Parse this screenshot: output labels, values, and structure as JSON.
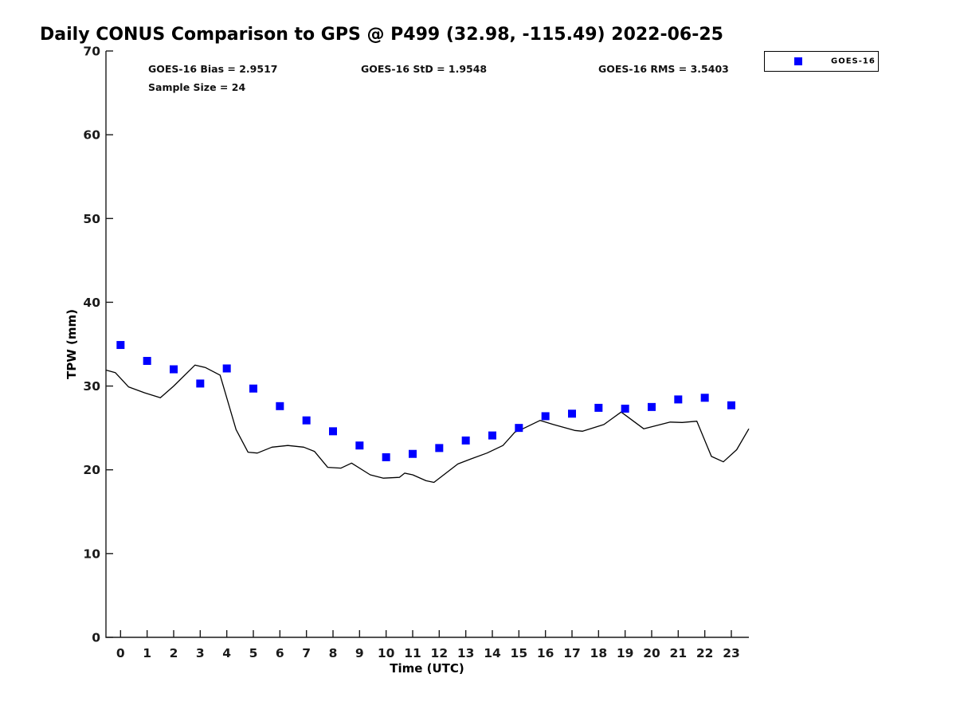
{
  "chart_data": {
    "type": "line",
    "title": "Daily CONUS Comparison to GPS @ P499 (32.98, -115.49) 2022-06-25",
    "xlabel": "Time (UTC)",
    "ylabel": "TPW (mm)",
    "xlim": [
      -0.55,
      23.66
    ],
    "ylim": [
      0,
      70
    ],
    "xticks": [
      0,
      1,
      2,
      3,
      4,
      5,
      6,
      7,
      8,
      9,
      10,
      11,
      12,
      13,
      14,
      15,
      16,
      17,
      18,
      19,
      20,
      21,
      22,
      23
    ],
    "yticks": [
      0,
      10,
      20,
      30,
      40,
      50,
      60,
      70
    ],
    "grid": false,
    "legend": {
      "position": "top-right",
      "entries": [
        "GOES-16"
      ]
    },
    "stats": {
      "bias_label": "GOES-16 Bias = 2.9517",
      "std_label": "GOES-16 StD = 1.9548",
      "rms_label": "GOES-16 RMS = 3.5403",
      "sample_label": "Sample Size = 24",
      "bias": 2.9517,
      "std": 1.9548,
      "rms": 3.5403,
      "sample_size": 24
    },
    "series": [
      {
        "name": "GOES-16",
        "type": "scatter",
        "marker": "square",
        "color": "#0000ff",
        "x": [
          0,
          1,
          2,
          3,
          4,
          5,
          6,
          7,
          8,
          9,
          10,
          11,
          12,
          13,
          14,
          15,
          16,
          17,
          18,
          19,
          20,
          21,
          22,
          23
        ],
        "y": [
          34.9,
          33.0,
          32.0,
          30.3,
          32.1,
          29.7,
          27.6,
          25.9,
          24.6,
          22.9,
          21.5,
          21.9,
          22.6,
          23.5,
          24.1,
          25.0,
          26.4,
          26.7,
          27.4,
          27.3,
          27.5,
          28.4,
          28.6,
          27.7
        ]
      },
      {
        "name": "GPS",
        "type": "line",
        "color": "#000000",
        "points": [
          [
            -0.54,
            31.9
          ],
          [
            -0.2,
            31.6
          ],
          [
            0.3,
            29.9
          ],
          [
            0.9,
            29.2
          ],
          [
            1.5,
            28.6
          ],
          [
            2.0,
            30.0
          ],
          [
            2.8,
            32.5
          ],
          [
            3.2,
            32.2
          ],
          [
            3.75,
            31.3
          ],
          [
            4.35,
            24.8
          ],
          [
            4.8,
            22.1
          ],
          [
            5.15,
            22.0
          ],
          [
            5.7,
            22.7
          ],
          [
            6.3,
            22.9
          ],
          [
            6.9,
            22.7
          ],
          [
            7.3,
            22.2
          ],
          [
            7.8,
            20.3
          ],
          [
            8.3,
            20.2
          ],
          [
            8.7,
            20.8
          ],
          [
            9.4,
            19.4
          ],
          [
            9.9,
            19.0
          ],
          [
            10.5,
            19.1
          ],
          [
            10.7,
            19.6
          ],
          [
            11.0,
            19.4
          ],
          [
            11.5,
            18.7
          ],
          [
            11.8,
            18.5
          ],
          [
            12.7,
            20.7
          ],
          [
            13.2,
            21.3
          ],
          [
            13.8,
            22.0
          ],
          [
            14.4,
            22.9
          ],
          [
            14.85,
            24.5
          ],
          [
            15.15,
            24.9
          ],
          [
            15.8,
            25.9
          ],
          [
            16.3,
            25.4
          ],
          [
            17.1,
            24.7
          ],
          [
            17.4,
            24.6
          ],
          [
            18.2,
            25.4
          ],
          [
            18.85,
            26.9
          ],
          [
            19.7,
            24.9
          ],
          [
            20.2,
            25.3
          ],
          [
            20.7,
            25.7
          ],
          [
            21.15,
            25.65
          ],
          [
            21.7,
            25.8
          ],
          [
            22.25,
            21.6
          ],
          [
            22.7,
            20.95
          ],
          [
            23.2,
            22.4
          ],
          [
            23.66,
            24.9
          ]
        ]
      }
    ]
  }
}
